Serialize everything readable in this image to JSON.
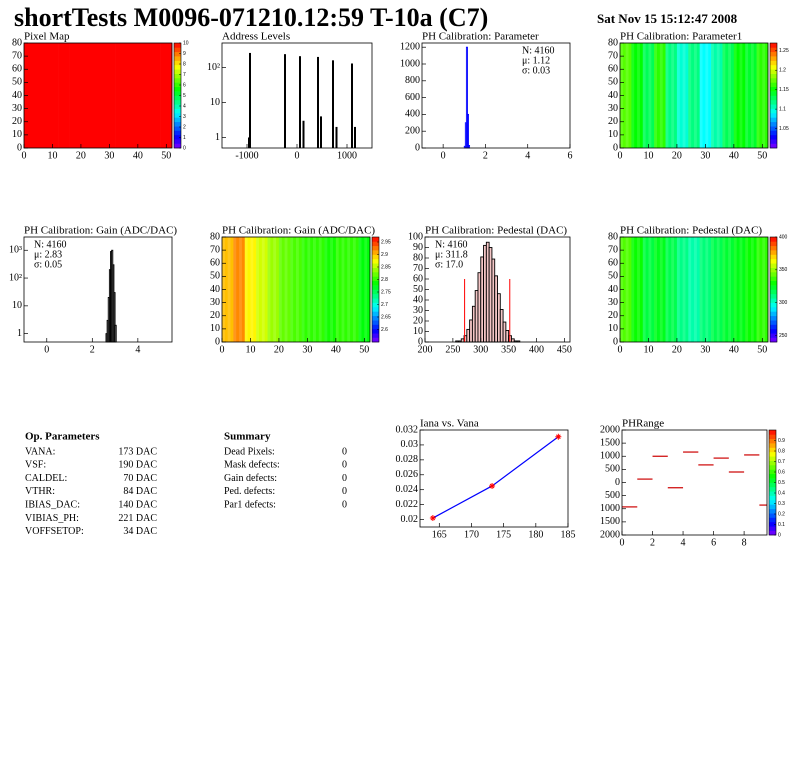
{
  "header": {
    "title": "shortTests M0096-071210.12:59 T-10a (C7)",
    "date": "Sat Nov 15 15:12:47 2008"
  },
  "chart_data": [
    {
      "type": "heatmap",
      "title": "Pixel Map",
      "xlim": [
        0,
        52
      ],
      "ylim": [
        0,
        80
      ],
      "xticks": [
        0,
        10,
        20,
        30,
        40,
        50
      ],
      "yticks": [
        0,
        10,
        20,
        30,
        40,
        50,
        60,
        70,
        80
      ],
      "x": [
        0,
        4,
        8,
        12,
        16,
        20,
        24,
        28,
        32,
        36,
        40,
        44,
        48
      ],
      "values": [
        10,
        10,
        10,
        10,
        10,
        10,
        10,
        10,
        10,
        10,
        10,
        10,
        10
      ],
      "zlim": [
        0,
        10
      ],
      "zticks": [
        0,
        1,
        2,
        3,
        4,
        5,
        6,
        7,
        8,
        9,
        10
      ]
    },
    {
      "type": "spikes",
      "title": "Address Levels",
      "log_y": true,
      "xlim": [
        -1500,
        1500
      ],
      "ylim": [
        0.5,
        500
      ],
      "xticks": [
        -1000,
        0,
        1000
      ],
      "yticks": [
        1,
        10,
        {
          "value": 100,
          "label": "10²"
        }
      ],
      "x": [
        -960,
        -940,
        -240,
        60,
        130,
        420,
        480,
        720,
        790,
        1100,
        1160
      ],
      "values": [
        1,
        260,
        240,
        210,
        3,
        200,
        4,
        160,
        2,
        130,
        2
      ],
      "color": "#000000"
    },
    {
      "type": "histogram",
      "title": "PH Calibration: Parameter",
      "xlim": [
        -1,
        6
      ],
      "ylim": [
        0,
        1250
      ],
      "xticks": [
        0,
        2,
        4,
        6
      ],
      "yticks": [
        0,
        200,
        400,
        600,
        800,
        1000,
        1200
      ],
      "bins": [
        1.0,
        1.05,
        1.1,
        1.15,
        1.2,
        1.25
      ],
      "values": [
        20,
        300,
        1200,
        400,
        30
      ],
      "color": "#0000ff",
      "stats": [
        "N: 4160",
        "μ: 1.12",
        "σ: 0.03"
      ],
      "stats_colors": [
        "#0000ff",
        "#0000ff",
        "#0000ff"
      ],
      "stats_corner": "right"
    },
    {
      "type": "heatmap",
      "title": "PH Calibration: Parameter1",
      "xlim": [
        0,
        52
      ],
      "ylim": [
        0,
        80
      ],
      "xticks": [
        0,
        10,
        20,
        30,
        40,
        50
      ],
      "yticks": [
        0,
        10,
        20,
        30,
        40,
        50,
        60,
        70,
        80
      ],
      "x": [
        0,
        4,
        8,
        12,
        16,
        20,
        24,
        28,
        32,
        36,
        40,
        44,
        48
      ],
      "values": [
        1.17,
        1.15,
        1.13,
        1.16,
        1.12,
        1.1,
        1.12,
        1.09,
        1.11,
        1.13,
        1.15,
        1.14,
        1.16
      ],
      "zlim": [
        1.0,
        1.27
      ],
      "zticks": [
        1.05,
        1.1,
        1.15,
        1.2,
        1.25
      ]
    },
    {
      "type": "histogram",
      "title": "PH Calibration: Gain (ADC/DAC)",
      "log_y": true,
      "xlim": [
        -1,
        5.5
      ],
      "ylim": [
        0.5,
        3000
      ],
      "xticks": [
        0,
        2,
        4
      ],
      "yticks": [
        1,
        10,
        {
          "value": 100,
          "label": "10²"
        },
        {
          "value": 1000,
          "label": "10³"
        }
      ],
      "bins": [
        2.6,
        2.65,
        2.7,
        2.75,
        2.8,
        2.85,
        2.9,
        2.95,
        3.0,
        3.05
      ],
      "values": [
        1,
        3,
        20,
        200,
        900,
        1000,
        300,
        30,
        2
      ],
      "color": "#000000",
      "stats": [
        "N: 4160",
        "μ: 2.83",
        "σ: 0.05"
      ],
      "stats_colors": [
        "#000000",
        "#000000",
        "#000000"
      ],
      "stats_corner": "left"
    },
    {
      "type": "heatmap",
      "title": "PH Calibration: Gain (ADC/DAC)",
      "xlim": [
        0,
        52
      ],
      "ylim": [
        0,
        80
      ],
      "xticks": [
        0,
        10,
        20,
        30,
        40,
        50
      ],
      "yticks": [
        0,
        10,
        20,
        30,
        40,
        50,
        60,
        70,
        80
      ],
      "x": [
        0,
        4,
        8,
        12,
        16,
        20,
        24,
        28,
        32,
        36,
        40,
        44,
        48
      ],
      "values": [
        2.9,
        2.92,
        2.88,
        2.86,
        2.84,
        2.82,
        2.81,
        2.8,
        2.8,
        2.79,
        2.8,
        2.8,
        2.78
      ],
      "zlim": [
        2.55,
        2.97
      ],
      "zticks": [
        2.6,
        2.65,
        2.7,
        2.75,
        2.8,
        2.85,
        2.9,
        2.95
      ]
    },
    {
      "type": "histogram",
      "title": "PH Calibration: Pedestal (DAC)",
      "xlim": [
        200,
        460
      ],
      "ylim": [
        0,
        100
      ],
      "xticks": [
        200,
        250,
        300,
        350,
        400,
        450
      ],
      "yticks": [
        0,
        10,
        20,
        30,
        40,
        50,
        60,
        70,
        80,
        90,
        100
      ],
      "bins": [
        250,
        255,
        260,
        265,
        270,
        275,
        280,
        285,
        290,
        295,
        300,
        305,
        310,
        315,
        320,
        325,
        330,
        335,
        340,
        345,
        350,
        355,
        360,
        365,
        370,
        375,
        380
      ],
      "values": [
        0,
        1,
        1,
        3,
        6,
        12,
        21,
        34,
        49,
        66,
        81,
        92,
        95,
        90,
        79,
        63,
        46,
        31,
        19,
        11,
        6,
        3,
        1,
        1,
        0,
        0
      ],
      "color": "#000000",
      "fill": "#f4c6c6",
      "cut_x": [
        271,
        352
      ],
      "cut_y": [
        60,
        60
      ],
      "cut_color": "#ff0000",
      "stats": [
        "N: 4160",
        "μ: 311.8",
        "σ: 17.0"
      ],
      "stats_colors": [
        "#000000",
        "#ff0000",
        "#ff0000"
      ],
      "stats_corner": "left"
    },
    {
      "type": "heatmap",
      "title": "PH Calibration: Pedestal (DAC)",
      "xlim": [
        0,
        52
      ],
      "ylim": [
        0,
        80
      ],
      "xticks": [
        0,
        10,
        20,
        30,
        40,
        50
      ],
      "yticks": [
        0,
        10,
        20,
        30,
        40,
        50,
        60,
        70,
        80
      ],
      "x": [
        0,
        4,
        8,
        12,
        16,
        20,
        24,
        28,
        32,
        36,
        40,
        44,
        48
      ],
      "values": [
        340,
        330,
        320,
        325,
        318,
        310,
        305,
        312,
        318,
        322,
        326,
        330,
        335
      ],
      "zlim": [
        240,
        400
      ],
      "zticks": [
        250,
        300,
        350,
        400
      ]
    },
    {
      "type": "line",
      "title": "Iana vs. Vana",
      "xlim": [
        162,
        185
      ],
      "ylim": [
        0.019,
        0.032
      ],
      "xticks": [
        165,
        170,
        175,
        180,
        185
      ],
      "yticks": [
        0.02,
        0.022,
        0.024,
        0.026,
        0.028,
        0.03,
        0.032
      ],
      "x": [
        164,
        173.2,
        183.5
      ],
      "values": [
        0.0202,
        0.0245,
        0.0311
      ],
      "color": "#0000ff",
      "marker_color": "#ff0000"
    },
    {
      "type": "steps",
      "title": "PHRange",
      "xlim": [
        0,
        9.5
      ],
      "ylim": [
        -2000,
        2000
      ],
      "xticks": [
        0,
        2,
        4,
        6,
        8
      ],
      "yticks": [
        {
          "value": -2000,
          "label": "2000"
        },
        {
          "value": -1500,
          "label": "1500"
        },
        {
          "value": -1000,
          "label": "1000"
        },
        {
          "value": -500,
          "label": "500"
        },
        0,
        500,
        1000,
        1500,
        2000
      ],
      "x": [
        0,
        1,
        2,
        3,
        4,
        5,
        6,
        7,
        8,
        9
      ],
      "values": [
        -930,
        130,
        1000,
        -200,
        1160,
        670,
        930,
        400,
        1050,
        -860
      ],
      "color": "#cc0000",
      "zlim": [
        0,
        1
      ],
      "zticks": [
        0,
        0.1,
        0.2,
        0.3,
        0.4,
        0.5,
        0.6,
        0.7,
        0.8,
        0.9
      ]
    }
  ],
  "op_parameters": {
    "title": "Op. Parameters",
    "rows": [
      [
        "VANA:",
        "173 DAC"
      ],
      [
        "VSF:",
        "190 DAC"
      ],
      [
        "CALDEL:",
        "70 DAC"
      ],
      [
        "VTHR:",
        "84 DAC"
      ],
      [
        "IBIAS_DAC:",
        "140 DAC"
      ],
      [
        "VIBIAS_PH:",
        "221 DAC"
      ],
      [
        "VOFFSETOP:",
        "34 DAC"
      ]
    ]
  },
  "summary": {
    "title": "Summary",
    "rows": [
      [
        "Dead Pixels:",
        "0"
      ],
      [
        "Mask defects:",
        "0"
      ],
      [
        "Gain defects:",
        "0"
      ],
      [
        "Ped. defects:",
        "0"
      ],
      [
        "Par1 defects:",
        "0"
      ]
    ],
    "colors": [
      "#000000",
      "#000000",
      "#000000",
      "#ff0000",
      "#0000ff"
    ]
  }
}
